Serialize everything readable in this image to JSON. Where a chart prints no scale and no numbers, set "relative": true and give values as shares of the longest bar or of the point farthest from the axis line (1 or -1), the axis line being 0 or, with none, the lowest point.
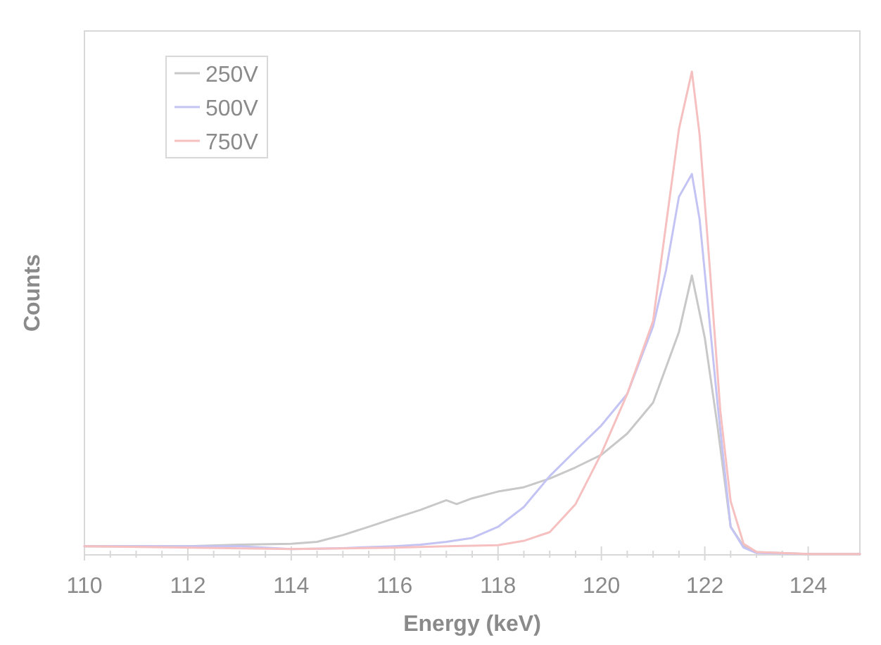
{
  "chart_data": {
    "type": "line",
    "xlabel": "Energy (keV)",
    "ylabel": "Counts",
    "relative": true,
    "xlim": [
      110,
      125
    ],
    "xticks": [
      110,
      112,
      114,
      116,
      118,
      120,
      122,
      124
    ],
    "legend": "top left",
    "grid": false,
    "marker": "none",
    "line_style": "solid",
    "series": [
      {
        "name": "250V",
        "color": "#c8c8c8",
        "x": [
          110,
          112,
          113,
          114,
          114.5,
          115,
          115.5,
          116,
          116.5,
          117,
          117.2,
          117.5,
          118,
          118.5,
          119,
          119.5,
          120,
          120.5,
          121,
          121.5,
          121.75,
          122,
          122.25,
          122.5,
          122.75,
          123,
          124,
          125
        ],
        "values": [
          0.018,
          0.018,
          0.021,
          0.023,
          0.027,
          0.041,
          0.058,
          0.076,
          0.093,
          0.113,
          0.105,
          0.117,
          0.131,
          0.14,
          0.158,
          0.181,
          0.207,
          0.251,
          0.315,
          0.461,
          0.578,
          0.449,
          0.263,
          0.058,
          0.018,
          0.006,
          0.002,
          0.002
        ]
      },
      {
        "name": "500V",
        "color": "#c4c4f4",
        "x": [
          110,
          113,
          114,
          115,
          116,
          116.5,
          117,
          117.5,
          118,
          118.5,
          119,
          119.5,
          120,
          120.5,
          121,
          121.25,
          121.5,
          121.75,
          121.9,
          122.25,
          122.5,
          122.75,
          123,
          124,
          125
        ],
        "values": [
          0.018,
          0.018,
          0.012,
          0.014,
          0.018,
          0.021,
          0.027,
          0.035,
          0.058,
          0.099,
          0.163,
          0.216,
          0.268,
          0.333,
          0.473,
          0.589,
          0.741,
          0.788,
          0.694,
          0.309,
          0.058,
          0.015,
          0.004,
          0.002,
          0.002
        ]
      },
      {
        "name": "750V",
        "color": "#f6c0c0",
        "x": [
          110,
          114,
          116,
          117,
          118,
          118.5,
          119,
          119.5,
          120,
          120.5,
          121,
          121.25,
          121.5,
          121.75,
          121.9,
          122.1,
          122.3,
          122.5,
          122.75,
          123,
          124,
          125
        ],
        "values": [
          0.018,
          0.012,
          0.015,
          0.018,
          0.02,
          0.029,
          0.047,
          0.105,
          0.21,
          0.333,
          0.484,
          0.683,
          0.881,
          1,
          0.869,
          0.589,
          0.298,
          0.111,
          0.023,
          0.006,
          0.002,
          0.002
        ]
      }
    ]
  }
}
